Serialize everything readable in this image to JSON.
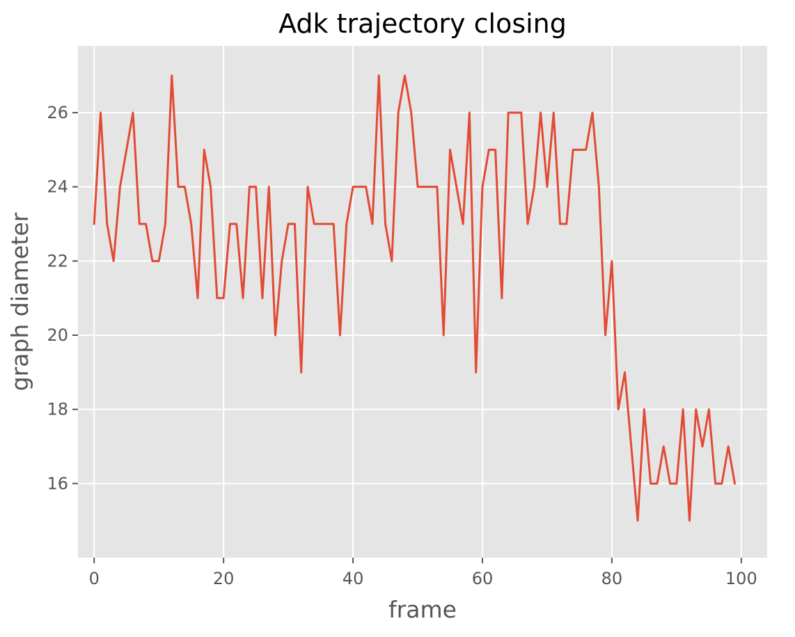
{
  "chart_data": {
    "type": "line",
    "title": "Adk trajectory closing",
    "xlabel": "frame",
    "ylabel": "graph diameter",
    "xlim": [
      -2.5,
      104
    ],
    "ylim": [
      14,
      27.8
    ],
    "xticks": [
      0,
      20,
      40,
      60,
      80,
      100
    ],
    "yticks": [
      16,
      18,
      20,
      22,
      24,
      26
    ],
    "xtick_labels": [
      "0",
      "20",
      "40",
      "60",
      "80",
      "100"
    ],
    "ytick_labels": [
      "16",
      "18",
      "20",
      "22",
      "24",
      "26"
    ],
    "grid": true,
    "legend": false,
    "series": [
      {
        "color": "#E24A33",
        "x": [
          0,
          1,
          2,
          3,
          4,
          5,
          6,
          7,
          8,
          9,
          10,
          11,
          12,
          13,
          14,
          15,
          16,
          17,
          18,
          19,
          20,
          21,
          22,
          23,
          24,
          25,
          26,
          27,
          28,
          29,
          30,
          31,
          32,
          33,
          34,
          35,
          36,
          37,
          38,
          39,
          40,
          41,
          42,
          43,
          44,
          45,
          46,
          47,
          48,
          49,
          50,
          51,
          52,
          53,
          54,
          55,
          56,
          57,
          58,
          59,
          60,
          61,
          62,
          63,
          64,
          65,
          66,
          67,
          68,
          69,
          70,
          71,
          72,
          73,
          74,
          75,
          76,
          77,
          78,
          79,
          80,
          81,
          82,
          83,
          84,
          85,
          86,
          87,
          88,
          89,
          90,
          91,
          92,
          93,
          94,
          95,
          96,
          97,
          98,
          99
        ],
        "y": [
          23,
          26,
          23,
          22,
          24,
          25,
          26,
          23,
          23,
          22,
          22,
          23,
          27,
          24,
          24,
          23,
          21,
          25,
          24,
          21,
          21,
          23,
          23,
          21,
          24,
          24,
          21,
          24,
          20,
          22,
          23,
          23,
          19,
          24,
          23,
          23,
          23,
          23,
          20,
          23,
          24,
          24,
          24,
          23,
          27,
          23,
          22,
          26,
          27,
          26,
          24,
          24,
          24,
          24,
          20,
          25,
          24,
          23,
          26,
          19,
          24,
          25,
          25,
          21,
          26,
          26,
          26,
          23,
          24,
          26,
          24,
          26,
          23,
          23,
          25,
          25,
          25,
          26,
          24,
          20,
          22,
          18,
          19,
          17,
          15,
          18,
          16,
          16,
          17,
          16,
          16,
          18,
          15,
          18,
          17,
          18,
          16,
          16,
          17,
          16
        ]
      }
    ]
  },
  "colors": {
    "plot_background": "#E5E5E5",
    "grid": "#FFFFFF",
    "series": "#E24A33"
  }
}
